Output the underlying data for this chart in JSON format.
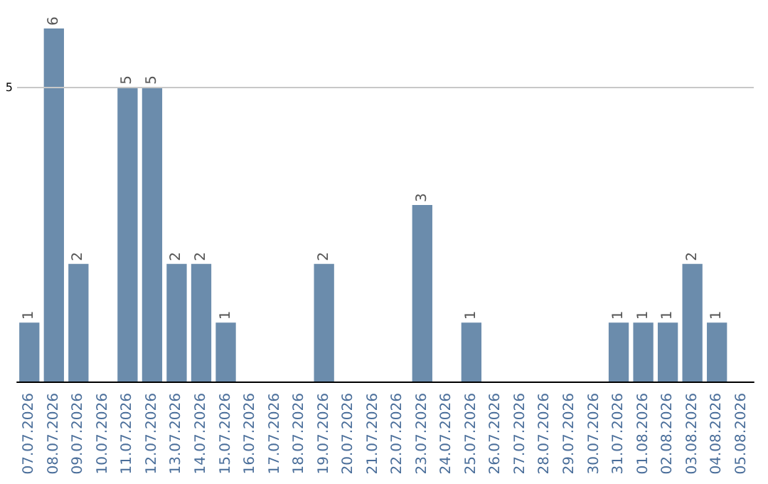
{
  "chart_data": {
    "type": "bar",
    "categories": [
      "07.07.2026",
      "08.07.2026",
      "09.07.2026",
      "10.07.2026",
      "11.07.2026",
      "12.07.2026",
      "13.07.2026",
      "14.07.2026",
      "15.07.2026",
      "16.07.2026",
      "17.07.2026",
      "18.07.2026",
      "19.07.2026",
      "20.07.2026",
      "21.07.2026",
      "22.07.2026",
      "23.07.2026",
      "24.07.2026",
      "25.07.2026",
      "26.07.2026",
      "27.07.2026",
      "28.07.2026",
      "29.07.2026",
      "30.07.2026",
      "31.07.2026",
      "01.08.2026",
      "02.08.2026",
      "03.08.2026",
      "04.08.2026",
      "05.08.2026"
    ],
    "values": [
      1,
      6,
      2,
      0,
      5,
      5,
      2,
      2,
      1,
      0,
      0,
      0,
      2,
      0,
      0,
      0,
      3,
      0,
      1,
      0,
      0,
      0,
      0,
      0,
      1,
      1,
      1,
      2,
      1,
      0
    ],
    "value_labels": [
      "1",
      "6",
      "2",
      null,
      "5",
      "5",
      "2",
      "2",
      "1",
      null,
      null,
      null,
      "2",
      null,
      null,
      null,
      "3",
      null,
      "1",
      null,
      null,
      null,
      null,
      null,
      "1",
      "1",
      "1",
      "2",
      "1",
      null
    ],
    "color": "#6b8cac",
    "tick_labels": "x",
    "ref_lines": [
      {
        "axis": "y",
        "value": 5,
        "label": "5",
        "color": "#c8c8c8"
      }
    ]
  }
}
